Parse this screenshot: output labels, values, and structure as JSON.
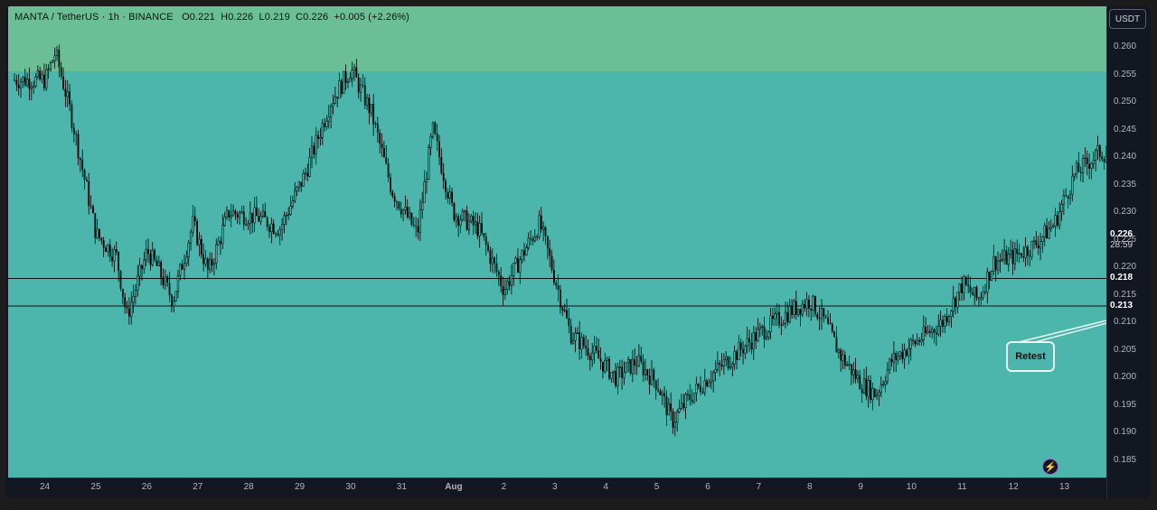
{
  "header": {
    "symbol": "MANTA / TetherUS · 1h · BINANCE",
    "open": "O0.221",
    "high": "H0.226",
    "low": "L0.219",
    "close": "C0.226",
    "change": "+0.005 (+2.26%)"
  },
  "currency_button": "USDT",
  "annotation_label": "Retest",
  "current_price_label": "0.226",
  "countdown_label": "28:59",
  "level_labels": [
    "0.218",
    "0.213"
  ],
  "colors": {
    "plot_bg": "#4db6ac",
    "zone_band": "#6bbf96",
    "candles": "#000000",
    "axis_bg": "#131722",
    "axis_text": "#b2b5be"
  },
  "icons": {
    "alert": "lightning-bolt-icon"
  },
  "chart_data": {
    "type": "candlestick",
    "title": "MANTA / TetherUS · 1h · BINANCE",
    "ylim": [
      0.181,
      0.264
    ],
    "y_ticks": [
      "0.260",
      "0.255",
      "0.250",
      "0.245",
      "0.240",
      "0.235",
      "0.230",
      "0.225",
      "0.220",
      "0.215",
      "0.210",
      "0.205",
      "0.200",
      "0.195",
      "0.190",
      "0.185"
    ],
    "x_ticks": [
      "24",
      "25",
      "26",
      "27",
      "28",
      "29",
      "30",
      "31",
      "Aug",
      "2",
      "3",
      "4",
      "5",
      "6",
      "7",
      "8",
      "9",
      "10",
      "11",
      "12",
      "13"
    ],
    "horizontal_levels": [
      0.218,
      0.213
    ],
    "resistance_zone": [
      0.2555,
      0.264
    ],
    "last_close": 0.226,
    "path_anchors": [
      [
        0.0,
        0.254
      ],
      [
        0.2,
        0.259
      ],
      [
        0.5,
        0.248
      ],
      [
        1.0,
        0.226
      ],
      [
        1.4,
        0.222
      ],
      [
        1.6,
        0.211
      ],
      [
        2.0,
        0.223
      ],
      [
        2.2,
        0.22
      ],
      [
        2.5,
        0.214
      ],
      [
        2.9,
        0.228
      ],
      [
        3.2,
        0.219
      ],
      [
        3.6,
        0.23
      ],
      [
        4.2,
        0.229
      ],
      [
        4.6,
        0.227
      ],
      [
        5.1,
        0.237
      ],
      [
        5.6,
        0.25
      ],
      [
        6.0,
        0.256
      ],
      [
        6.4,
        0.248
      ],
      [
        6.8,
        0.234
      ],
      [
        7.3,
        0.226
      ],
      [
        7.6,
        0.245
      ],
      [
        8.0,
        0.23
      ],
      [
        8.5,
        0.227
      ],
      [
        9.0,
        0.216
      ],
      [
        9.4,
        0.223
      ],
      [
        9.7,
        0.228
      ],
      [
        10.0,
        0.218
      ],
      [
        10.3,
        0.208
      ],
      [
        10.8,
        0.204
      ],
      [
        11.2,
        0.2
      ],
      [
        11.6,
        0.203
      ],
      [
        12.0,
        0.199
      ],
      [
        12.3,
        0.192
      ],
      [
        12.6,
        0.196
      ],
      [
        13.0,
        0.2
      ],
      [
        13.5,
        0.204
      ],
      [
        14.0,
        0.208
      ],
      [
        14.6,
        0.212
      ],
      [
        15.0,
        0.214
      ],
      [
        15.3,
        0.21
      ],
      [
        15.6,
        0.204
      ],
      [
        16.0,
        0.199
      ],
      [
        16.3,
        0.197
      ],
      [
        16.6,
        0.203
      ],
      [
        17.0,
        0.206
      ],
      [
        17.6,
        0.21
      ],
      [
        18.0,
        0.217
      ],
      [
        18.3,
        0.214
      ],
      [
        18.6,
        0.221
      ],
      [
        19.0,
        0.222
      ],
      [
        19.4,
        0.224
      ],
      [
        19.8,
        0.228
      ],
      [
        20.2,
        0.237
      ],
      [
        20.7,
        0.241
      ],
      [
        21.1,
        0.239
      ],
      [
        21.5,
        0.23
      ],
      [
        21.9,
        0.236
      ],
      [
        22.3,
        0.237
      ],
      [
        22.7,
        0.228
      ],
      [
        23.0,
        0.222
      ],
      [
        23.3,
        0.22
      ],
      [
        23.55,
        0.22
      ],
      [
        23.8,
        0.217
      ],
      [
        24.0,
        0.226
      ]
    ]
  }
}
